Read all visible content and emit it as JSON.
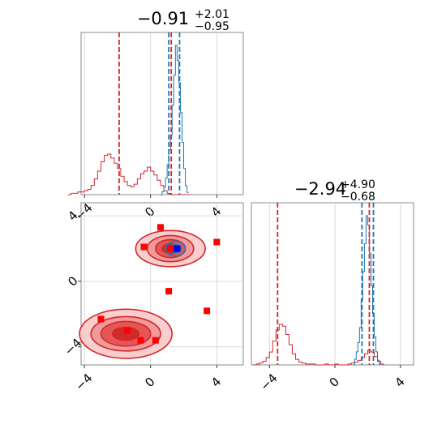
{
  "chart_data": [
    {
      "type": "histogram",
      "panel": "top-left",
      "title": {
        "value": "−0.91",
        "upper": "+2.01",
        "lower": "−0.95"
      },
      "xlim": [
        -4.2,
        5.6
      ],
      "xticks": [
        -4,
        0,
        4
      ],
      "grid": true,
      "series": [
        {
          "color": "#d62728",
          "bins": [
            -5.0,
            -4.8,
            -4.6,
            -4.4,
            -4.2,
            -4.0,
            -3.8,
            -3.6,
            -3.4,
            -3.2,
            -3.0,
            -2.8,
            -2.6,
            -2.4,
            -2.2,
            -2.0,
            -1.8,
            -1.6,
            -1.4,
            -1.2,
            -1.0,
            -0.8,
            -0.6,
            -0.4,
            -0.2,
            0.0,
            0.2,
            0.4,
            0.6,
            0.8,
            1.0,
            1.2,
            1.4,
            1.6,
            1.8,
            2.0,
            2.2,
            2.4
          ],
          "counts": [
            0,
            1,
            1,
            2,
            2,
            3,
            4,
            7,
            12,
            18,
            25,
            30,
            31,
            28,
            24,
            20,
            14,
            10,
            7,
            6,
            8,
            12,
            16,
            18,
            21,
            18,
            15,
            11,
            7,
            3,
            1,
            0,
            0,
            0,
            0,
            0,
            0
          ]
        },
        {
          "color": "#1f77b4",
          "bins": [
            0.6,
            0.7,
            0.8,
            0.9,
            1.0,
            1.1,
            1.2,
            1.3,
            1.4,
            1.5,
            1.6,
            1.7,
            1.8,
            1.9,
            2.0,
            2.1,
            2.2,
            2.3
          ],
          "counts": [
            0,
            4,
            10,
            22,
            40,
            60,
            80,
            120,
            160,
            200,
            180,
            150,
            110,
            70,
            35,
            12,
            3
          ]
        }
      ],
      "vlines": [
        {
          "x": -1.9,
          "color": "#d62728",
          "style": "dashed"
        },
        {
          "x": 1.25,
          "color": "#d62728",
          "style": "dashed"
        },
        {
          "x": 1.1,
          "color": "#1f77b4",
          "style": "dashed"
        },
        {
          "x": 1.75,
          "color": "#1f77b4",
          "style": "dashed"
        }
      ]
    },
    {
      "type": "histogram",
      "panel": "bottom-right",
      "title": {
        "value": "−2.94",
        "upper": "+4.90",
        "lower": "−0.68"
      },
      "xlim": [
        -5.1,
        4.8
      ],
      "xticks": [
        -4,
        0,
        4
      ],
      "grid": true,
      "series": [
        {
          "color": "#d62728",
          "bins": [
            -5.0,
            -4.8,
            -4.6,
            -4.4,
            -4.2,
            -4.0,
            -3.8,
            -3.6,
            -3.4,
            -3.2,
            -3.0,
            -2.8,
            -2.6,
            -2.4,
            -2.2,
            -2.0,
            -1.8,
            -1.6,
            -1.4,
            -1.2,
            -1.0,
            -0.8,
            -0.6,
            -0.4,
            -0.2,
            0.0,
            0.2,
            0.4,
            0.6,
            0.8,
            1.0,
            1.2,
            1.4,
            1.6,
            1.8,
            2.0,
            2.2,
            2.4,
            2.6,
            2.8
          ],
          "counts": [
            0,
            1,
            2,
            4,
            8,
            14,
            26,
            38,
            44,
            42,
            33,
            22,
            12,
            6,
            3,
            2,
            1,
            1,
            1,
            0,
            0,
            0,
            1,
            0,
            0,
            1,
            0,
            0,
            0,
            1,
            2,
            3,
            5,
            8,
            12,
            16,
            14,
            9,
            4,
            1
          ]
        },
        {
          "color": "#1f77b4",
          "bins": [
            1.1,
            1.2,
            1.3,
            1.4,
            1.5,
            1.6,
            1.7,
            1.8,
            1.9,
            2.0,
            2.1,
            2.2,
            2.3,
            2.4,
            2.5,
            2.6,
            2.7,
            2.8
          ],
          "counts": [
            0,
            6,
            14,
            24,
            40,
            70,
            100,
            130,
            160,
            150,
            120,
            85,
            55,
            30,
            14,
            5,
            1
          ]
        }
      ],
      "vlines": [
        {
          "x": -3.5,
          "color": "#d62728",
          "style": "dashed"
        },
        {
          "x": 2.1,
          "color": "#d62728",
          "style": "dashed"
        },
        {
          "x": 1.65,
          "color": "#1f77b4",
          "style": "dashed"
        },
        {
          "x": 2.35,
          "color": "#1f77b4",
          "style": "dashed"
        }
      ]
    },
    {
      "type": "scatter",
      "panel": "bottom-left",
      "xlim": [
        -4.2,
        5.6
      ],
      "ylim": [
        -5.1,
        4.8
      ],
      "xticks": [
        -4,
        0,
        4
      ],
      "yticks": [
        -4,
        0,
        4
      ],
      "grid": true,
      "contours": [
        {
          "color": "#d62728",
          "cx": 1.2,
          "cy": 2.0,
          "rx": [
            2.1,
            1.4,
            0.9,
            0.5
          ],
          "ry": [
            1.1,
            0.8,
            0.55,
            0.3
          ]
        },
        {
          "color": "#d62728",
          "cx": -1.5,
          "cy": -3.2,
          "rx": [
            2.8,
            2.1,
            1.5,
            0.8
          ],
          "ry": [
            1.5,
            1.05,
            0.75,
            0.4
          ]
        },
        {
          "color": "#1f77b4",
          "cx": 1.5,
          "cy": 2.0,
          "rx": [
            0.6,
            0.35
          ],
          "ry": [
            0.45,
            0.25
          ]
        }
      ],
      "points": {
        "color": "#ff0000",
        "x": [
          0.6,
          -0.4,
          4.0,
          1.2,
          1.6,
          1.1,
          3.4,
          -3.0,
          -1.4,
          -0.6,
          0.3
        ],
        "y": [
          3.3,
          2.1,
          2.4,
          2.0,
          2.0,
          -0.6,
          -1.8,
          -2.3,
          -3.0,
          -3.6,
          -3.6
        ]
      },
      "truth_point": {
        "x": 1.6,
        "y": 2.0,
        "color": "#0000ff"
      }
    }
  ]
}
